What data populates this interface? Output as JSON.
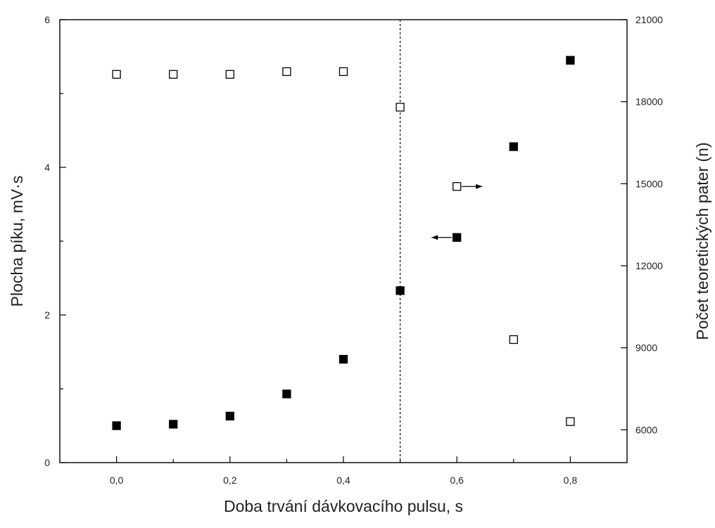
{
  "chart_data": {
    "type": "scatter",
    "title": "",
    "xlabel": "Doba trvání dávkovacího pulsu, s",
    "ylabel_left": "Plocha píku, mV·s",
    "ylabel_right": "Počet teoretických pater (n)",
    "xlim": [
      -0.1,
      0.9
    ],
    "ylim_left": [
      0,
      6
    ],
    "ylim_right": [
      4800,
      21000
    ],
    "x_ticks": [
      0.0,
      0.1,
      0.2,
      0.3,
      0.4,
      0.5,
      0.6,
      0.7,
      0.8
    ],
    "x_tick_labels": [
      "0,0",
      "0,2",
      "0,4",
      "0,6",
      "0,8"
    ],
    "x_tick_label_values": [
      0.0,
      0.2,
      0.4,
      0.6,
      0.8
    ],
    "y_left_ticks": [
      0,
      2,
      4,
      6
    ],
    "y_left_tick_labels": [
      "0",
      "2",
      "4",
      "6"
    ],
    "y_left_minor_ticks": [
      1,
      3,
      5
    ],
    "y_right_ticks": [
      6000,
      9000,
      12000,
      15000,
      18000,
      21000
    ],
    "y_right_tick_labels": [
      "6000",
      "9000",
      "12000",
      "15000",
      "18000",
      "21000"
    ],
    "grid": false,
    "reference_line_x": 0.5,
    "series": [
      {
        "axis": "left",
        "marker": "filled-square",
        "color": "#000000",
        "x": [
          0.0,
          0.1,
          0.2,
          0.3,
          0.4,
          0.5,
          0.6,
          0.7,
          0.8
        ],
        "y": [
          0.5,
          0.52,
          0.63,
          0.93,
          1.4,
          2.33,
          3.05,
          4.28,
          5.45
        ]
      },
      {
        "axis": "right",
        "marker": "open-square",
        "color": "#000000",
        "x": [
          0.0,
          0.1,
          0.2,
          0.3,
          0.4,
          0.5,
          0.6,
          0.7,
          0.8
        ],
        "y": [
          19000,
          19000,
          19000,
          19100,
          19100,
          17800,
          14900,
          9300,
          6300
        ]
      }
    ],
    "arrows": [
      {
        "series_marker": "filled-square",
        "at_x": 0.6,
        "direction": "left",
        "points_to": "left-axis"
      },
      {
        "series_marker": "open-square",
        "at_x": 0.6,
        "direction": "right",
        "points_to": "right-axis"
      }
    ]
  }
}
